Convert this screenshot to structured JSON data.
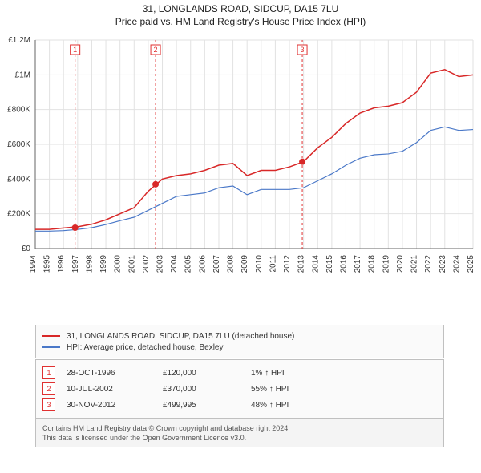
{
  "title_line1": "31, LONGLANDS ROAD, SIDCUP, DA15 7LU",
  "title_line2": "Price paid vs. HM Land Registry's House Price Index (HPI)",
  "chart": {
    "type": "line",
    "background_color": "#ffffff",
    "plot_bg": "#ffffff",
    "grid_color": "#e2e2e2",
    "axis_color": "#666666",
    "tick_font_size": 10,
    "x_years": [
      1994,
      1995,
      1996,
      1997,
      1998,
      1999,
      2000,
      2001,
      2002,
      2003,
      2004,
      2005,
      2006,
      2007,
      2008,
      2009,
      2010,
      2011,
      2012,
      2013,
      2014,
      2015,
      2016,
      2017,
      2018,
      2019,
      2020,
      2021,
      2022,
      2023,
      2024,
      2025
    ],
    "ylim": [
      0,
      1200000
    ],
    "ytick_values": [
      0,
      200000,
      400000,
      600000,
      800000,
      1000000,
      1200000
    ],
    "ytick_labels": [
      "£0",
      "£200K",
      "£400K",
      "£600K",
      "£800K",
      "£1M",
      "£1.2M"
    ],
    "series": [
      {
        "name": "31, LONGLANDS ROAD, SIDCUP, DA15 7LU (detached house)",
        "color": "#d82828",
        "line_width": 1.5,
        "values_by_year": {
          "1994": 110000,
          "1995": 110000,
          "1996": 118000,
          "1997": 125000,
          "1998": 140000,
          "1999": 165000,
          "2000": 200000,
          "2001": 235000,
          "2002": 330000,
          "2003": 400000,
          "2004": 420000,
          "2005": 430000,
          "2006": 450000,
          "2007": 480000,
          "2008": 490000,
          "2009": 420000,
          "2010": 450000,
          "2011": 450000,
          "2012": 470000,
          "2013": 500000,
          "2014": 580000,
          "2015": 640000,
          "2016": 720000,
          "2017": 780000,
          "2018": 810000,
          "2019": 820000,
          "2020": 840000,
          "2021": 900000,
          "2022": 1010000,
          "2023": 1030000,
          "2024": 990000,
          "2025": 1000000
        }
      },
      {
        "name": "HPI: Average price, detached house, Bexley",
        "color": "#4a78c8",
        "line_width": 1.2,
        "values_by_year": {
          "1994": 100000,
          "1995": 100000,
          "1996": 103000,
          "1997": 110000,
          "1998": 120000,
          "1999": 138000,
          "2000": 160000,
          "2001": 180000,
          "2002": 220000,
          "2003": 260000,
          "2004": 300000,
          "2005": 310000,
          "2006": 320000,
          "2007": 350000,
          "2008": 360000,
          "2009": 310000,
          "2010": 340000,
          "2011": 340000,
          "2012": 340000,
          "2013": 350000,
          "2014": 390000,
          "2015": 430000,
          "2016": 480000,
          "2017": 520000,
          "2018": 540000,
          "2019": 545000,
          "2020": 560000,
          "2021": 610000,
          "2022": 680000,
          "2023": 700000,
          "2024": 680000,
          "2025": 685000
        }
      }
    ],
    "event_markers": [
      {
        "badge": "1",
        "year": 1996.82,
        "price": 120000,
        "line_color": "#e03030",
        "dash": "3,3"
      },
      {
        "badge": "2",
        "year": 2002.52,
        "price": 370000,
        "line_color": "#e03030",
        "dash": "3,3"
      },
      {
        "badge": "3",
        "year": 2012.91,
        "price": 499995,
        "line_color": "#e03030",
        "dash": "3,3"
      }
    ],
    "marker_dot": {
      "radius": 4,
      "fill": "#d82828"
    },
    "badge_box": {
      "size": 12,
      "border": "#e03030",
      "text_color": "#e03030",
      "bg": "#ffffff",
      "font_size": 9
    }
  },
  "legend": {
    "rows": [
      {
        "color": "#d82828",
        "label": "31, LONGLANDS ROAD, SIDCUP, DA15 7LU (detached house)"
      },
      {
        "color": "#4a78c8",
        "label": "HPI: Average price, detached house, Bexley"
      }
    ]
  },
  "events": {
    "rows": [
      {
        "badge": "1",
        "date": "28-OCT-1996",
        "price": "£120,000",
        "delta": "1% ↑ HPI"
      },
      {
        "badge": "2",
        "date": "10-JUL-2002",
        "price": "£370,000",
        "delta": "55% ↑ HPI"
      },
      {
        "badge": "3",
        "date": "30-NOV-2012",
        "price": "£499,995",
        "delta": "48% ↑ HPI"
      }
    ]
  },
  "attribution": {
    "line1": "Contains HM Land Registry data © Crown copyright and database right 2024.",
    "line2": "This data is licensed under the Open Government Licence v3.0."
  }
}
